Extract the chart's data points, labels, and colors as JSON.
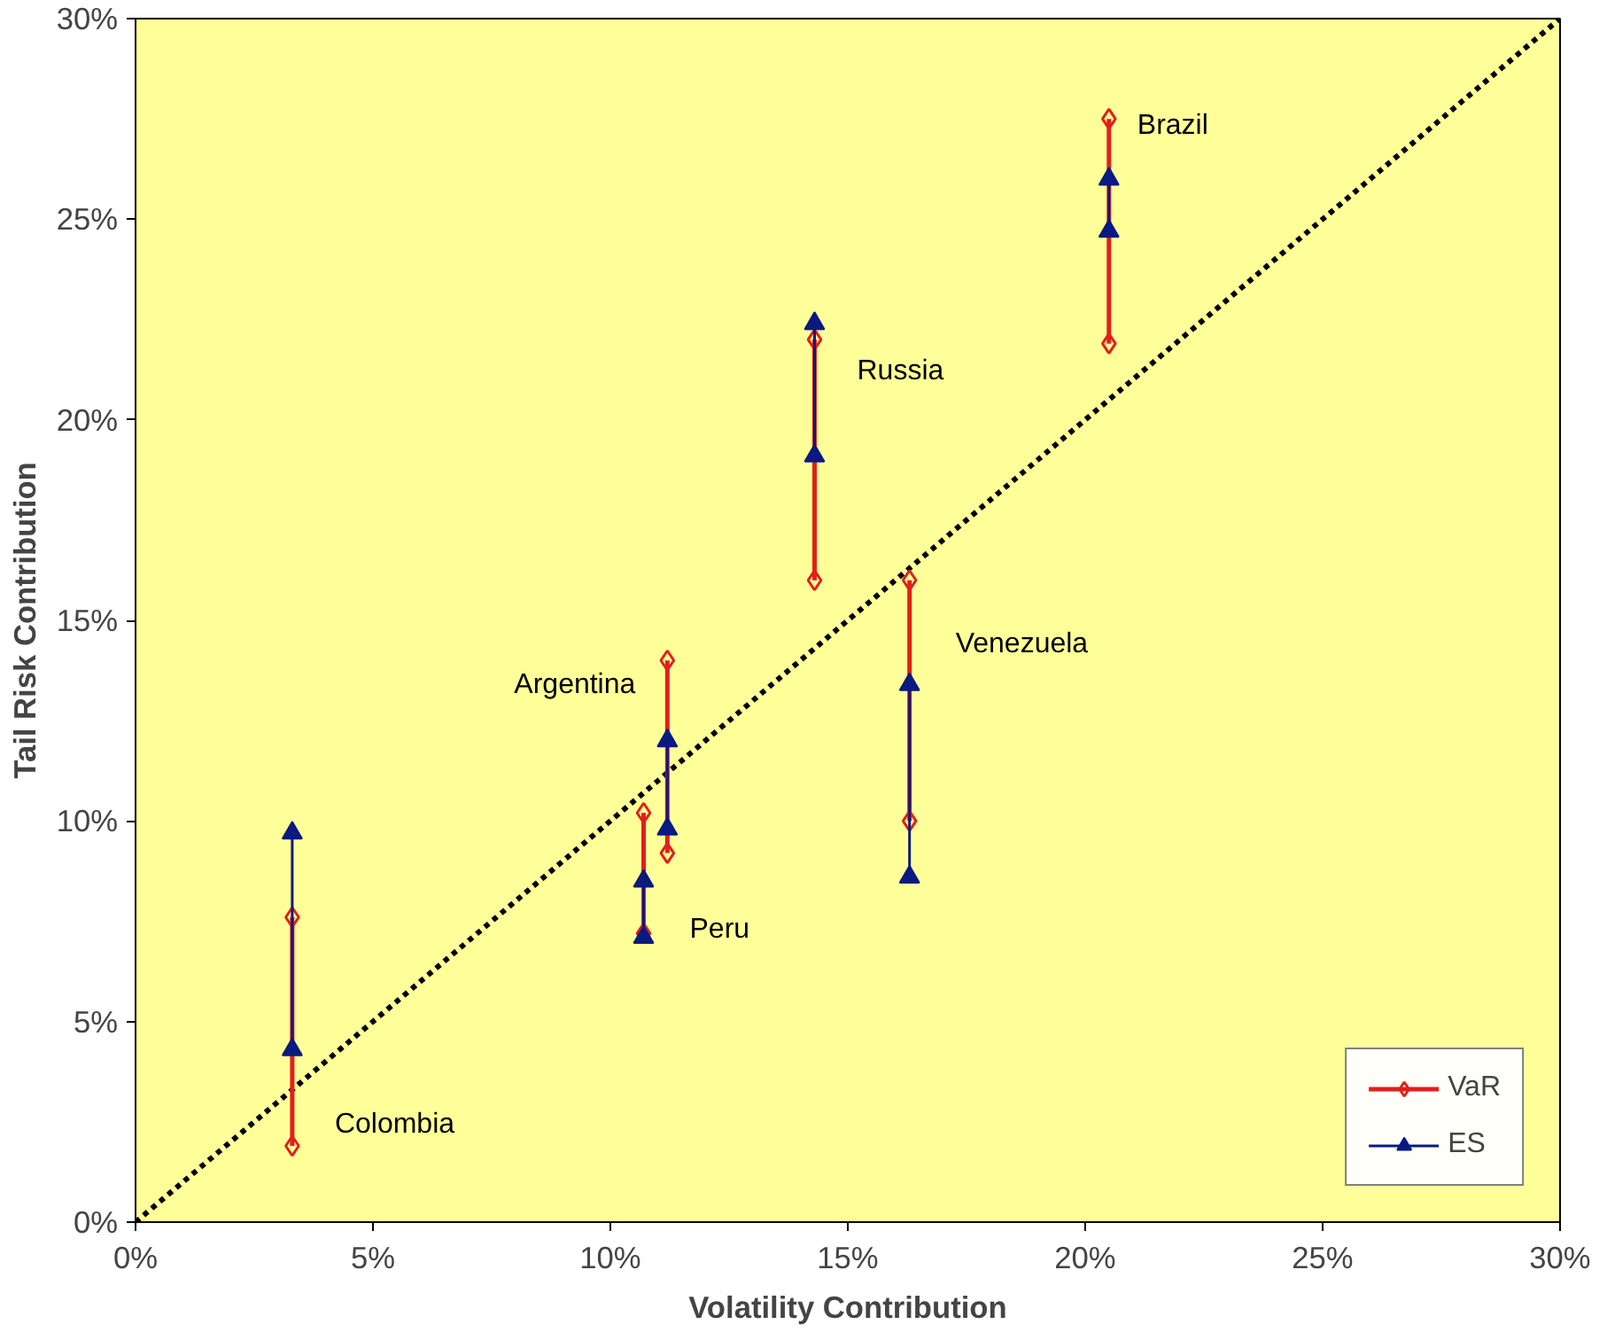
{
  "chart_data": {
    "type": "line",
    "xlabel": "Volatility Contribution",
    "ylabel": "Tail Risk Contribution",
    "xlim": [
      0,
      30
    ],
    "ylim": [
      0,
      30
    ],
    "xticks": [
      {
        "value": 0,
        "label": "0%"
      },
      {
        "value": 5,
        "label": "5%"
      },
      {
        "value": 10,
        "label": "10%"
      },
      {
        "value": 15,
        "label": "15%"
      },
      {
        "value": 20,
        "label": "20%"
      },
      {
        "value": 25,
        "label": "25%"
      },
      {
        "value": 30,
        "label": "30%"
      }
    ],
    "yticks": [
      {
        "value": 0,
        "label": "0%"
      },
      {
        "value": 5,
        "label": "5%"
      },
      {
        "value": 10,
        "label": "10%"
      },
      {
        "value": 15,
        "label": "15%"
      },
      {
        "value": 20,
        "label": "20%"
      },
      {
        "value": 25,
        "label": "25%"
      },
      {
        "value": 30,
        "label": "30%"
      }
    ],
    "grid": false,
    "legend": "bottom right",
    "series": [
      {
        "color": "#000000",
        "line_style": "dotted",
        "marker": "none",
        "x": [
          0,
          30
        ],
        "values": [
          0,
          30
        ]
      },
      {
        "name": "VaR",
        "color": "#e0201b",
        "marker": "diamond",
        "x": [
          3.3,
          3.3,
          null,
          10.7,
          10.7,
          null,
          11.2,
          11.2,
          null,
          14.3,
          14.3,
          null,
          16.3,
          16.3,
          null,
          20.5,
          20.5
        ],
        "values": [
          7.6,
          1.9,
          null,
          10.2,
          7.2,
          null,
          14.0,
          9.2,
          null,
          22.0,
          16.0,
          null,
          16.0,
          10.0,
          null,
          27.5,
          21.9
        ]
      },
      {
        "name": "ES",
        "color": "#0a1a80",
        "marker": "triangle",
        "x": [
          3.3,
          3.3,
          null,
          10.7,
          10.7,
          null,
          11.2,
          11.2,
          null,
          14.3,
          14.3,
          null,
          16.3,
          16.3,
          null,
          20.5,
          20.5
        ],
        "values": [
          9.7,
          4.3,
          null,
          8.5,
          7.1,
          null,
          12.0,
          9.8,
          null,
          22.4,
          19.1,
          null,
          13.4,
          8.6,
          null,
          26.0,
          24.7
        ]
      }
    ],
    "annotations": [
      {
        "text": "Colombia",
        "x": 3.3,
        "y": 1.9
      },
      {
        "text": "Peru",
        "x": 10.7,
        "y": 7.2
      },
      {
        "text": "Argentina",
        "x": 11.2,
        "y": 14.0
      },
      {
        "text": "Russia",
        "x": 14.3,
        "y": 22.0
      },
      {
        "text": "Venezuela",
        "x": 16.3,
        "y": 16.0
      },
      {
        "text": "Brazil",
        "x": 20.5,
        "y": 27.5
      }
    ]
  }
}
